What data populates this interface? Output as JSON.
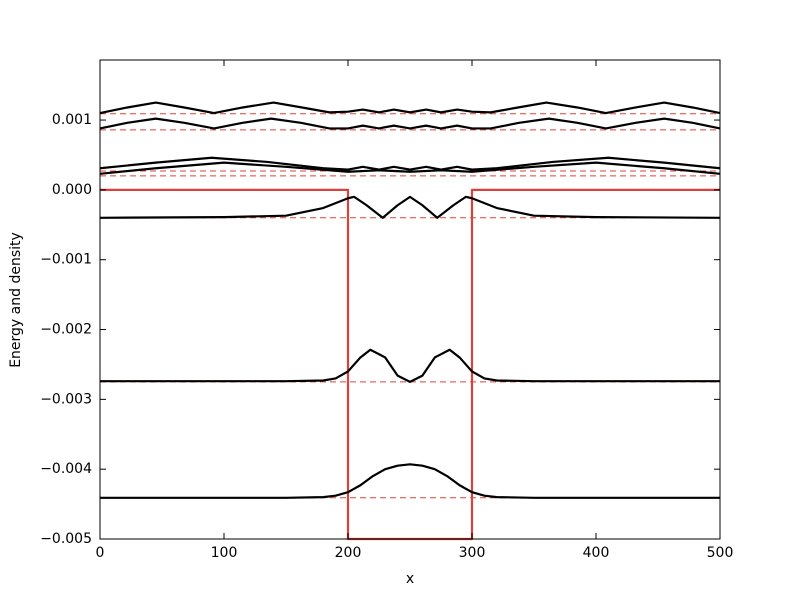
{
  "chart_data": {
    "type": "line",
    "xlabel": "x",
    "ylabel": "Energy and density",
    "xlim": [
      0,
      500
    ],
    "ylim": [
      -0.005,
      0.00186
    ],
    "xticks": [
      0,
      100,
      200,
      300,
      400,
      500
    ],
    "yticks": [
      {
        "value": -0.005,
        "label": "−0.005"
      },
      {
        "value": -0.004,
        "label": "−0.004"
      },
      {
        "value": -0.003,
        "label": "−0.003"
      },
      {
        "value": -0.002,
        "label": "−0.002"
      },
      {
        "value": -0.001,
        "label": "−0.001"
      },
      {
        "value": 0,
        "label": "0.000"
      },
      {
        "value": 0.001,
        "label": "0.001"
      }
    ],
    "levels": [
      0.00109,
      0.00086,
      0.00027,
      0.0002,
      -0.0004,
      -0.00275,
      -0.00441
    ],
    "level_color": "#e0413a",
    "series": [
      {
        "color": "#d9413a",
        "x": [
          0,
          200,
          200,
          300,
          300,
          500
        ],
        "values": [
          0,
          0,
          -0.005,
          -0.005,
          0,
          0
        ]
      },
      {
        "color": "#000000",
        "x": [
          0,
          150,
          180,
          190,
          200,
          210,
          220,
          230,
          240,
          250,
          260,
          270,
          280,
          290,
          300,
          310,
          320,
          350,
          500
        ],
        "values": [
          -0.00441,
          -0.00441,
          -0.0044,
          -0.00438,
          -0.00433,
          -0.00423,
          -0.0041,
          -0.004,
          -0.00395,
          -0.00393,
          -0.00395,
          -0.004,
          -0.0041,
          -0.00423,
          -0.00433,
          -0.00438,
          -0.0044,
          -0.00441,
          -0.00441
        ]
      },
      {
        "color": "#000000",
        "x": [
          0,
          150,
          180,
          190,
          200,
          210,
          218,
          230,
          240,
          250,
          260,
          270,
          282,
          290,
          300,
          310,
          320,
          350,
          500
        ],
        "values": [
          -0.00274,
          -0.00274,
          -0.00273,
          -0.0027,
          -0.0026,
          -0.0024,
          -0.00229,
          -0.0024,
          -0.00266,
          -0.00275,
          -0.00266,
          -0.0024,
          -0.00229,
          -0.0024,
          -0.0026,
          -0.0027,
          -0.00273,
          -0.00274,
          -0.00274
        ]
      },
      {
        "color": "#000000",
        "x": [
          0,
          100,
          150,
          180,
          190,
          200,
          205,
          215,
          228,
          240,
          250,
          260,
          272,
          285,
          295,
          300,
          310,
          320,
          350,
          400,
          500
        ],
        "values": [
          -0.0004,
          -0.00039,
          -0.00037,
          -0.00026,
          -0.00019,
          -0.00012,
          -0.0001,
          -0.00022,
          -0.0004,
          -0.00022,
          -0.0001,
          -0.00022,
          -0.0004,
          -0.00022,
          -0.0001,
          -0.00012,
          -0.00019,
          -0.00026,
          -0.00037,
          -0.00039,
          -0.0004
        ]
      },
      {
        "color": "#000000",
        "x": [
          0,
          45,
          100,
          150,
          200,
          225,
          250,
          275,
          300,
          350,
          400,
          455,
          500
        ],
        "values": [
          0.00023,
          0.00031,
          0.00039,
          0.00033,
          0.00026,
          0.00028,
          0.00026,
          0.00028,
          0.00026,
          0.00033,
          0.00039,
          0.00031,
          0.00023
        ]
      },
      {
        "color": "#000000",
        "x": [
          0,
          45,
          90,
          135,
          180,
          200,
          212,
          225,
          237,
          250,
          263,
          275,
          288,
          300,
          320,
          365,
          410,
          455,
          500
        ],
        "values": [
          0.00031,
          0.00039,
          0.00046,
          0.0004,
          0.00031,
          0.00029,
          0.00033,
          0.00029,
          0.00033,
          0.00029,
          0.00033,
          0.00029,
          0.00033,
          0.00029,
          0.00031,
          0.0004,
          0.00046,
          0.00039,
          0.00031
        ]
      },
      {
        "color": "#000000",
        "x": [
          0,
          22,
          45,
          68,
          92,
          115,
          138,
          162,
          185,
          200,
          212,
          225,
          237,
          250,
          263,
          275,
          288,
          300,
          315,
          338,
          362,
          385,
          408,
          432,
          455,
          478,
          500
        ],
        "values": [
          0.00088,
          0.00096,
          0.00102,
          0.00096,
          0.00088,
          0.00096,
          0.00102,
          0.00096,
          0.00088,
          0.00088,
          0.00092,
          0.00088,
          0.00092,
          0.00088,
          0.00092,
          0.00088,
          0.00092,
          0.00088,
          0.00088,
          0.00096,
          0.00102,
          0.00096,
          0.00088,
          0.00096,
          0.00102,
          0.00096,
          0.00088
        ]
      },
      {
        "color": "#000000",
        "x": [
          0,
          22,
          45,
          68,
          92,
          115,
          140,
          163,
          185,
          200,
          212,
          225,
          237,
          250,
          263,
          275,
          288,
          300,
          315,
          337,
          360,
          385,
          408,
          432,
          455,
          478,
          500
        ],
        "values": [
          0.0011,
          0.00118,
          0.00125,
          0.00118,
          0.0011,
          0.00118,
          0.00125,
          0.00118,
          0.00111,
          0.00112,
          0.00115,
          0.00111,
          0.00115,
          0.00111,
          0.00115,
          0.00111,
          0.00115,
          0.00112,
          0.00111,
          0.00118,
          0.00125,
          0.00118,
          0.0011,
          0.00118,
          0.00125,
          0.00118,
          0.0011
        ]
      }
    ]
  }
}
